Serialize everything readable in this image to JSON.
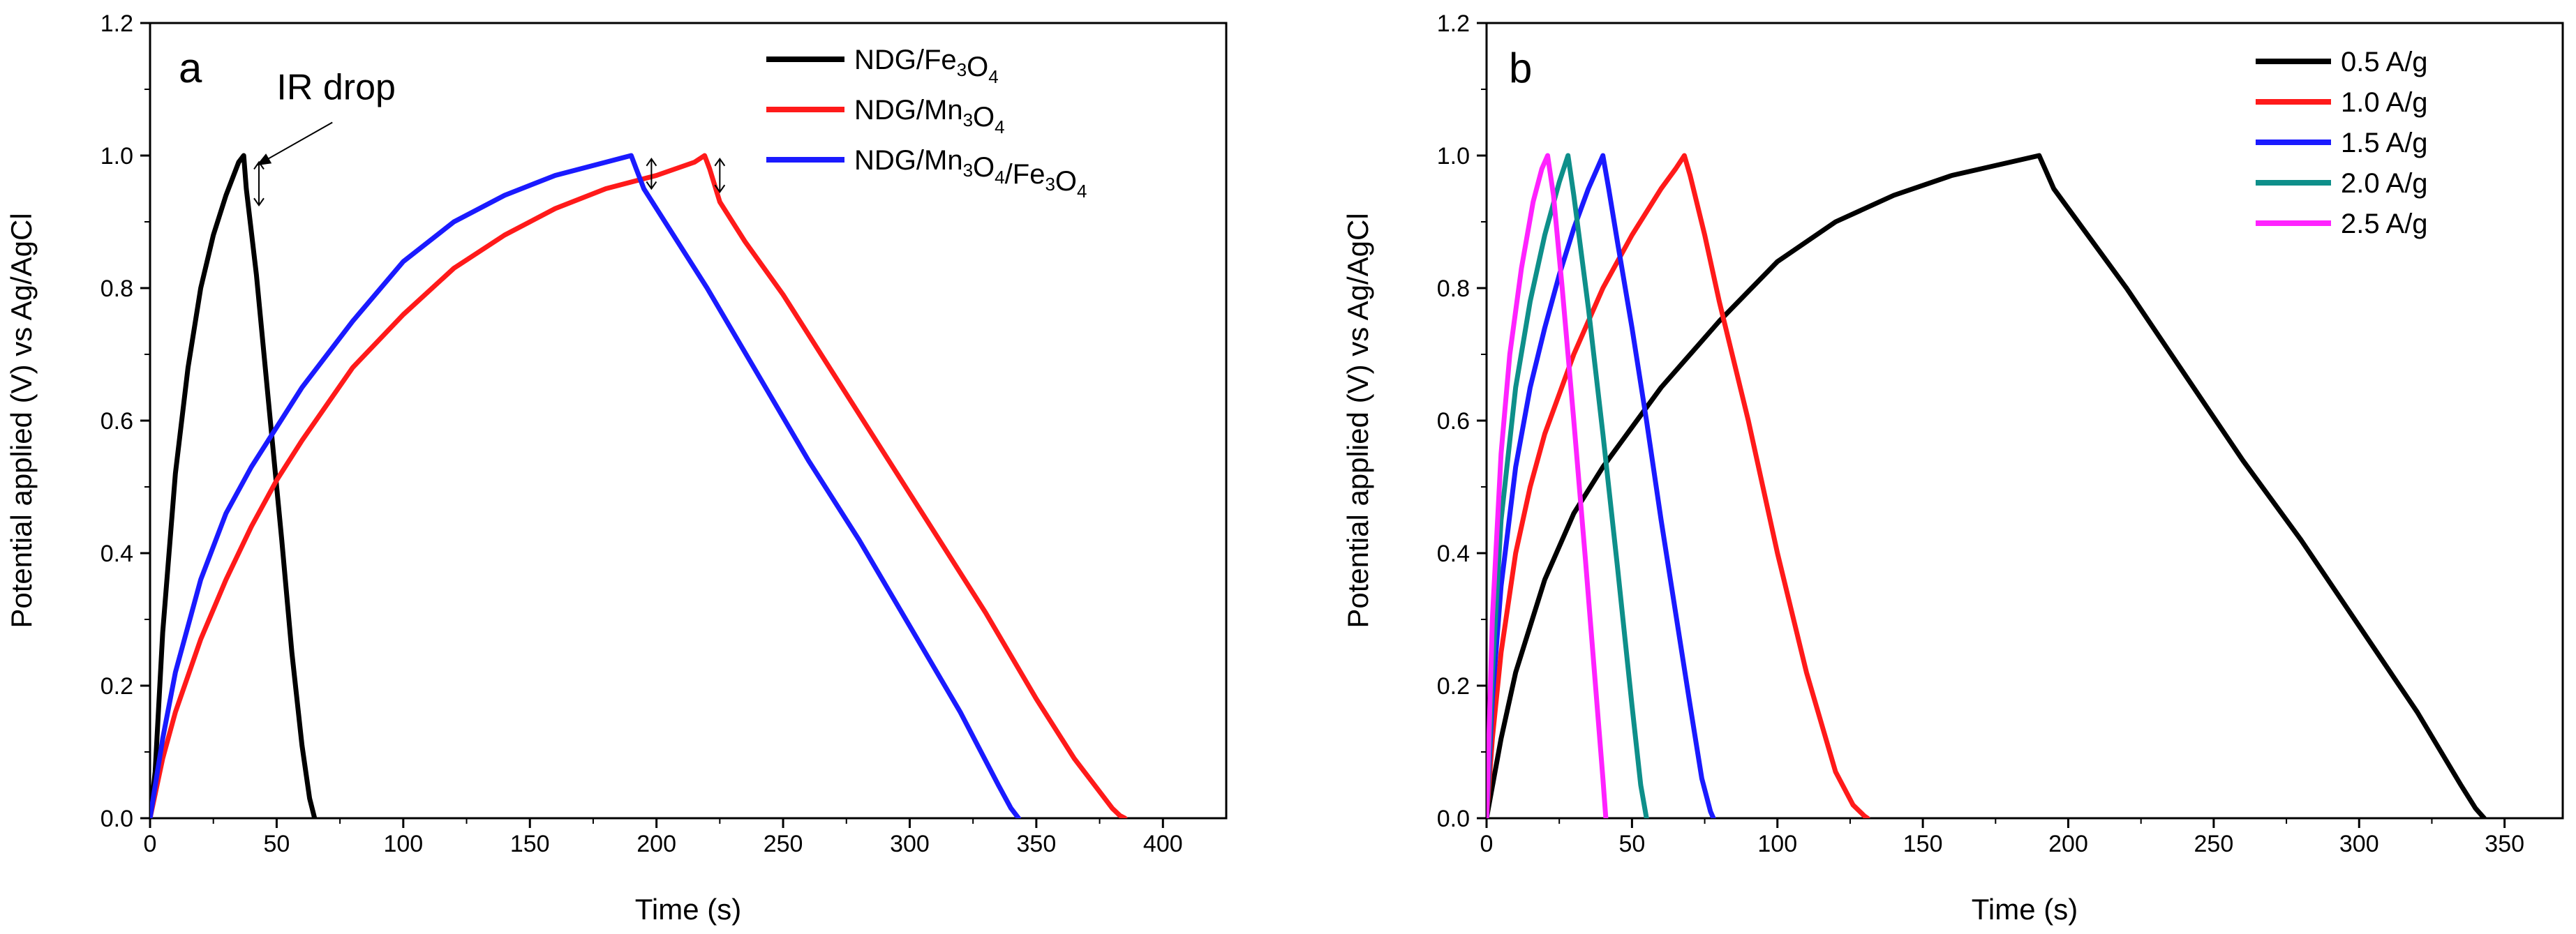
{
  "colors": {
    "black": "#000000",
    "red": "#ff1a1a",
    "blue": "#1a1aff",
    "teal": "#0e8f8a",
    "magenta": "#ff22ff"
  },
  "chart_data": [
    {
      "type": "line",
      "panel_label": "a",
      "xlabel": "Time (s)",
      "ylabel": "Potential applied (V) vs Ag/AgCl",
      "xlim": [
        0,
        425
      ],
      "ylim": [
        0,
        1.2
      ],
      "xticks": [
        0,
        50,
        100,
        150,
        200,
        250,
        300,
        350,
        400
      ],
      "xtick_labels": [
        "0",
        "50",
        "100",
        "150",
        "200",
        "250",
        "300",
        "350",
        "400"
      ],
      "yticks": [
        0,
        0.2,
        0.4,
        0.6,
        0.8,
        1.0,
        1.2
      ],
      "ytick_labels": [
        "0.0",
        "0.2",
        "0.4",
        "0.6",
        "0.8",
        "1.0",
        "1.2"
      ],
      "grid": false,
      "legend_position": "top-right",
      "series": [
        {
          "name": "NDG/Fe3O4",
          "name_parts": [
            [
              "NDG/Fe",
              false
            ],
            [
              "3",
              true
            ],
            [
              "O",
              false
            ],
            [
              "4",
              true
            ]
          ],
          "color": "#000000",
          "x": [
            0,
            2,
            5,
            10,
            15,
            20,
            25,
            30,
            35,
            37,
            38,
            42,
            47,
            52,
            56,
            60,
            63,
            65
          ],
          "y": [
            0,
            0.07,
            0.28,
            0.52,
            0.68,
            0.8,
            0.88,
            0.94,
            0.99,
            1.0,
            0.95,
            0.82,
            0.62,
            0.42,
            0.25,
            0.11,
            0.03,
            0
          ]
        },
        {
          "name": "NDG/Mn3O4",
          "name_parts": [
            [
              "NDG/Mn",
              false
            ],
            [
              "3",
              true
            ],
            [
              "O",
              false
            ],
            [
              "4",
              true
            ]
          ],
          "color": "#ff1a1a",
          "x": [
            0,
            5,
            10,
            20,
            30,
            40,
            50,
            60,
            80,
            100,
            120,
            140,
            160,
            180,
            200,
            215,
            219,
            221,
            225,
            235,
            250,
            270,
            290,
            310,
            330,
            350,
            365,
            375,
            380,
            383,
            385
          ],
          "y": [
            0,
            0.09,
            0.16,
            0.27,
            0.36,
            0.44,
            0.51,
            0.57,
            0.68,
            0.76,
            0.83,
            0.88,
            0.92,
            0.95,
            0.97,
            0.99,
            1.0,
            0.98,
            0.93,
            0.87,
            0.79,
            0.67,
            0.55,
            0.43,
            0.31,
            0.18,
            0.09,
            0.04,
            0.015,
            0.004,
            0
          ]
        },
        {
          "name": "NDG/Mn3O4/Fe3O4",
          "name_parts": [
            [
              "NDG/Mn",
              false
            ],
            [
              "3",
              true
            ],
            [
              "O",
              false
            ],
            [
              "4",
              true
            ],
            [
              "/Fe",
              false
            ],
            [
              "3",
              true
            ],
            [
              "O",
              false
            ],
            [
              "4",
              true
            ]
          ],
          "color": "#1a1aff",
          "x": [
            0,
            5,
            10,
            20,
            30,
            40,
            50,
            60,
            80,
            100,
            120,
            140,
            160,
            180,
            190,
            192,
            195,
            205,
            220,
            240,
            260,
            280,
            300,
            320,
            335,
            340,
            343
          ],
          "y": [
            0,
            0.12,
            0.22,
            0.36,
            0.46,
            0.53,
            0.59,
            0.65,
            0.75,
            0.84,
            0.9,
            0.94,
            0.97,
            0.99,
            1.0,
            0.98,
            0.95,
            0.89,
            0.8,
            0.67,
            0.54,
            0.42,
            0.29,
            0.16,
            0.05,
            0.015,
            0
          ]
        }
      ],
      "annotations": [
        {
          "type": "text",
          "text": "IR drop",
          "x": 50,
          "y": 1.085
        },
        {
          "type": "arrow",
          "x1": 72,
          "y1": 1.05,
          "x2": 42,
          "y2": 0.985
        },
        {
          "type": "double-arrow",
          "x": 43,
          "y1": 0.925,
          "y2": 0.99
        },
        {
          "type": "double-arrow",
          "x": 198,
          "y1": 0.95,
          "y2": 0.995
        },
        {
          "type": "double-arrow",
          "x": 225,
          "y1": 0.945,
          "y2": 0.995
        }
      ]
    },
    {
      "type": "line",
      "panel_label": "b",
      "xlabel": "Time (s)",
      "ylabel": "Potential applied (V) vs Ag/AgCl",
      "xlim": [
        0,
        370
      ],
      "ylim": [
        0,
        1.2
      ],
      "xticks": [
        0,
        50,
        100,
        150,
        200,
        250,
        300,
        350
      ],
      "xtick_labels": [
        "0",
        "50",
        "100",
        "150",
        "200",
        "250",
        "300",
        "350"
      ],
      "yticks": [
        0,
        0.2,
        0.4,
        0.6,
        0.8,
        1.0,
        1.2
      ],
      "ytick_labels": [
        "0.0",
        "0.2",
        "0.4",
        "0.6",
        "0.8",
        "1.0",
        "1.2"
      ],
      "grid": false,
      "legend_position": "top-right",
      "series": [
        {
          "name": "0.5 A/g",
          "color": "#000000",
          "x": [
            0,
            5,
            10,
            20,
            30,
            40,
            50,
            60,
            80,
            100,
            120,
            140,
            160,
            180,
            190,
            192,
            195,
            205,
            220,
            240,
            260,
            280,
            300,
            320,
            335,
            340,
            343
          ],
          "y": [
            0,
            0.12,
            0.22,
            0.36,
            0.46,
            0.53,
            0.59,
            0.65,
            0.75,
            0.84,
            0.9,
            0.94,
            0.97,
            0.99,
            1.0,
            0.98,
            0.95,
            0.89,
            0.8,
            0.67,
            0.54,
            0.42,
            0.29,
            0.16,
            0.05,
            0.015,
            0
          ]
        },
        {
          "name": "1.0 A/g",
          "color": "#ff1a1a",
          "x": [
            0,
            2,
            5,
            10,
            15,
            20,
            30,
            40,
            50,
            60,
            65,
            68,
            70,
            75,
            80,
            90,
            100,
            110,
            120,
            126,
            130,
            131
          ],
          "y": [
            0,
            0.12,
            0.25,
            0.4,
            0.5,
            0.58,
            0.7,
            0.8,
            0.88,
            0.95,
            0.98,
            1.0,
            0.97,
            0.88,
            0.78,
            0.6,
            0.4,
            0.22,
            0.07,
            0.02,
            0.003,
            0
          ]
        },
        {
          "name": "1.5 A/g",
          "color": "#1a1aff",
          "x": [
            0,
            2,
            5,
            10,
            15,
            20,
            25,
            30,
            35,
            38,
            40,
            42,
            45,
            50,
            55,
            60,
            65,
            70,
            74,
            77,
            78
          ],
          "y": [
            0,
            0.18,
            0.35,
            0.53,
            0.65,
            0.74,
            0.82,
            0.89,
            0.95,
            0.98,
            1.0,
            0.95,
            0.87,
            0.74,
            0.6,
            0.45,
            0.31,
            0.17,
            0.06,
            0.01,
            0
          ]
        },
        {
          "name": "2.0 A/g",
          "color": "#0e8f8a",
          "x": [
            0,
            2,
            5,
            10,
            15,
            20,
            25,
            28,
            30,
            35,
            40,
            45,
            50,
            53,
            55
          ],
          "y": [
            0,
            0.22,
            0.45,
            0.65,
            0.78,
            0.88,
            0.96,
            1.0,
            0.94,
            0.77,
            0.58,
            0.38,
            0.17,
            0.05,
            0
          ]
        },
        {
          "name": "2.5 A/g",
          "color": "#ff22ff",
          "x": [
            0,
            2,
            5,
            8,
            12,
            16,
            19,
            21,
            23,
            26,
            30,
            34,
            38,
            40,
            41
          ],
          "y": [
            0,
            0.3,
            0.55,
            0.7,
            0.83,
            0.93,
            0.98,
            1.0,
            0.94,
            0.8,
            0.6,
            0.39,
            0.17,
            0.06,
            0
          ]
        }
      ]
    }
  ]
}
